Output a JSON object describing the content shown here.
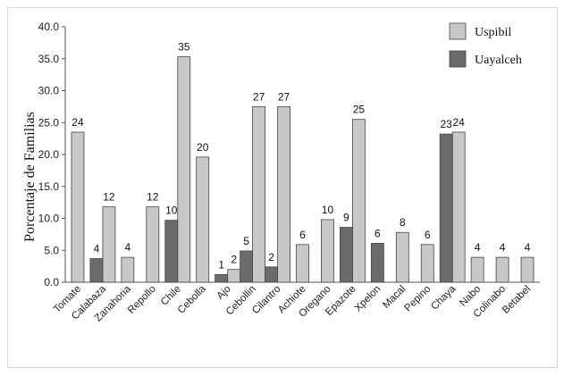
{
  "chart_data": {
    "type": "bar",
    "title": "",
    "xlabel": "",
    "ylabel": "Porcentaje de Familias",
    "ylim": [
      0,
      40
    ],
    "yticks": [
      "0.0",
      "5.0",
      "10.0",
      "15.0",
      "20.0",
      "25.0",
      "30.0",
      "35.0",
      "40.0"
    ],
    "legend_position": "top-right",
    "grid": false,
    "categories": [
      "Tomate",
      "Calabaza",
      "Zanahoria",
      "Repollo",
      "Chile",
      "Cebolla",
      "Ajo",
      "Cebollin",
      "Cilantro",
      "Achiote",
      "Oregano",
      "Epazote",
      "Xpelon",
      "Macal",
      "Pepino",
      "Chaya",
      "Nabo",
      "Colinabo",
      "Betabel"
    ],
    "series": [
      {
        "name": "Uspibil",
        "color": "#c8c8c8",
        "values": [
          23.5,
          11.8,
          3.9,
          11.8,
          35.3,
          19.6,
          2.0,
          27.5,
          27.5,
          5.9,
          9.8,
          25.5,
          null,
          7.8,
          5.9,
          23.5,
          3.9,
          3.9,
          3.9
        ],
        "labels": [
          "24",
          "12",
          "4",
          "12",
          "35",
          "20",
          "2",
          "27",
          "27",
          "6",
          "10",
          "25",
          "",
          "8",
          "6",
          "24",
          "4",
          "4",
          "4"
        ]
      },
      {
        "name": "Uayalceh",
        "color": "#6b6b6b",
        "values": [
          null,
          3.7,
          null,
          null,
          9.7,
          null,
          1.2,
          4.9,
          2.4,
          null,
          null,
          8.6,
          6.1,
          null,
          null,
          23.2,
          null,
          null,
          null
        ],
        "labels": [
          "",
          "4",
          "",
          "",
          "10",
          "",
          "1",
          "5",
          "2",
          "",
          "",
          "9",
          "6",
          "",
          "",
          "23",
          "",
          "",
          ""
        ]
      }
    ]
  }
}
